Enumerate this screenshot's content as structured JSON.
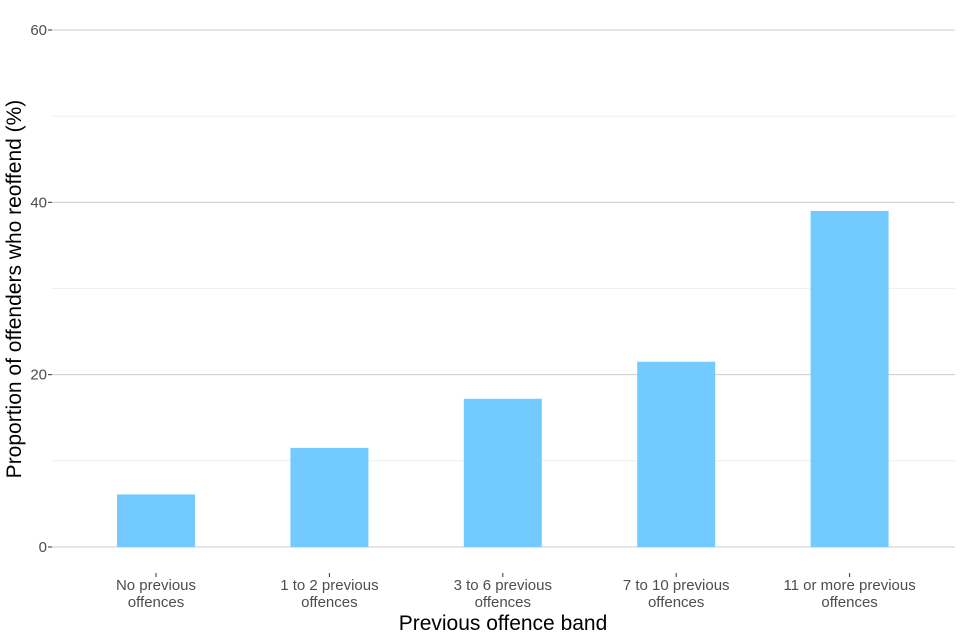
{
  "chart_data": {
    "type": "bar",
    "title": "",
    "xlabel": "Previous offence band",
    "ylabel": "Proportion of offenders who reoffend (%)",
    "categories": [
      [
        "No previous",
        "offences"
      ],
      [
        "1 to 2 previous",
        "offences"
      ],
      [
        "3 to 6 previous",
        "offences"
      ],
      [
        "7 to 10 previous",
        "offences"
      ],
      [
        "11 or more previous",
        "offences"
      ]
    ],
    "values": [
      6.1,
      11.5,
      17.2,
      21.5,
      39.0
    ],
    "ylim": [
      0,
      60
    ],
    "yticks": [
      0,
      20,
      40,
      60
    ],
    "grid": true,
    "bar_color": "#73caff",
    "grid_major_color": "#cccccc",
    "grid_minor_color": "#ececec"
  }
}
